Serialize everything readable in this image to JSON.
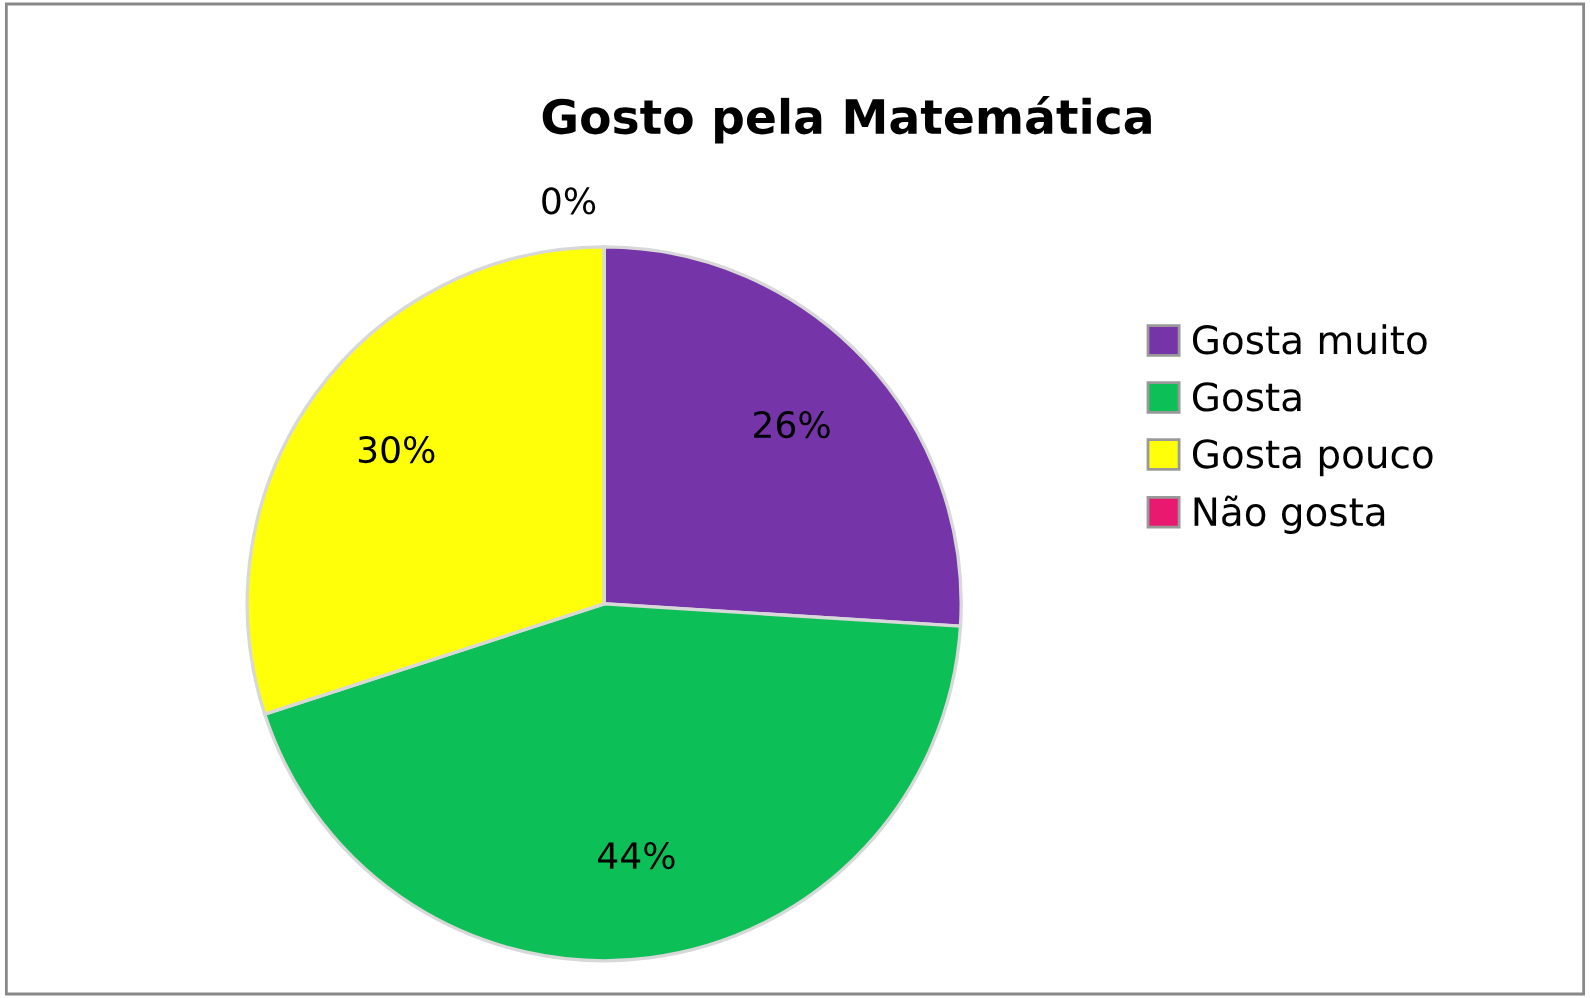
{
  "chart_data": {
    "type": "pie",
    "title": "Gosto pela Matemática",
    "categories": [
      "Gosta muito",
      "Gosta",
      "Gosta pouco",
      "Não gosta"
    ],
    "values": [
      26,
      44,
      30,
      0
    ],
    "value_labels": [
      "26%",
      "44%",
      "30%",
      "0%"
    ],
    "colors": [
      "#7535a8",
      "#0dbf57",
      "#ffff0a",
      "#e8196e"
    ],
    "legend": "right"
  }
}
